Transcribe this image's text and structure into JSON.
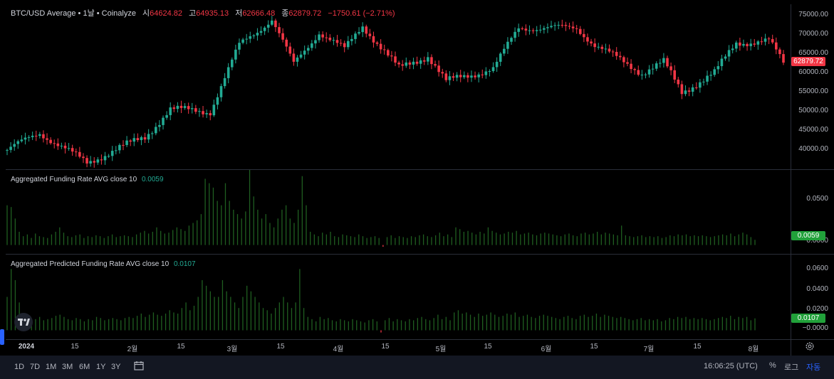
{
  "main_legend": {
    "title": "BTC/USD Average • 1날 • Coinalyze",
    "open_label": "시",
    "open": "64624.82",
    "high_label": "고",
    "high": "64935.13",
    "low_label": "저",
    "low": "62666.48",
    "close_label": "종",
    "close": "62879.72",
    "change": "−1750.61 (−2.71%)"
  },
  "price_axis": {
    "ticks": [
      "75000.00",
      "70000.00",
      "65000.00",
      "60000.00",
      "55000.00",
      "50000.00",
      "45000.00",
      "40000.00"
    ],
    "last_price_tag": "62879.72"
  },
  "funding_pane": {
    "title": "Aggregated Funding Rate AVG close 10",
    "value": "0.0059",
    "ticks": [
      "0.0500",
      "0.0000"
    ],
    "tag": "0.0059"
  },
  "predicted_pane": {
    "title": "Aggregated Predicted Funding Rate AVG close 10",
    "value": "0.0107",
    "ticks": [
      "0.0600",
      "0.0400",
      "0.0200",
      "−0.0000"
    ],
    "tag": "0.0107"
  },
  "time_axis": {
    "labels": [
      "2024",
      "15",
      "2월",
      "15",
      "3월",
      "15",
      "4월",
      "15",
      "5월",
      "15",
      "6월",
      "15",
      "7월",
      "15",
      "8월"
    ]
  },
  "bottom_bar": {
    "ranges": [
      "1D",
      "7D",
      "1M",
      "3M",
      "6M",
      "1Y",
      "3Y"
    ],
    "clock": "16:06:25 (UTC)",
    "percent": "%",
    "log": "로그",
    "auto": "자동"
  },
  "colors": {
    "up": "#22ab94",
    "down": "#f23645",
    "bar": "#1f5e20",
    "grid": "#2a2e39"
  },
  "icons": {
    "settings": "gear-icon",
    "date_range": "calendar-icon",
    "brand": "tradingview-logo-icon"
  },
  "chart_data": [
    {
      "type": "candlestick",
      "title": "BTC/USD Average • 1날 • Coinalyze",
      "ylim": [
        38000,
        76500
      ],
      "y_ticks": [
        75000,
        70000,
        65000,
        60000,
        55000,
        50000,
        45000,
        40000
      ],
      "x_range": [
        "2024-01-01",
        "2024-08-05"
      ],
      "key_points": [
        {
          "x": "2024-01-01",
          "y": 42500
        },
        {
          "x": "2024-01-10",
          "y": 46500
        },
        {
          "x": "2024-01-23",
          "y": 39500
        },
        {
          "x": "2024-02-01",
          "y": 43000
        },
        {
          "x": "2024-02-08",
          "y": 45500
        },
        {
          "x": "2024-02-15",
          "y": 52000
        },
        {
          "x": "2024-02-26",
          "y": 51500
        },
        {
          "x": "2024-03-05",
          "y": 67000
        },
        {
          "x": "2024-03-14",
          "y": 73000
        },
        {
          "x": "2024-03-20",
          "y": 62500
        },
        {
          "x": "2024-03-27",
          "y": 70000
        },
        {
          "x": "2024-04-03",
          "y": 66000
        },
        {
          "x": "2024-04-08",
          "y": 71500
        },
        {
          "x": "2024-04-18",
          "y": 61500
        },
        {
          "x": "2024-04-26",
          "y": 64500
        },
        {
          "x": "2024-05-01",
          "y": 58500
        },
        {
          "x": "2024-05-14",
          "y": 61500
        },
        {
          "x": "2024-05-21",
          "y": 71000
        },
        {
          "x": "2024-06-06",
          "y": 71000
        },
        {
          "x": "2024-06-11",
          "y": 67000
        },
        {
          "x": "2024-06-24",
          "y": 60500
        },
        {
          "x": "2024-06-30",
          "y": 63000
        },
        {
          "x": "2024-07-05",
          "y": 56000
        },
        {
          "x": "2024-07-14",
          "y": 60500
        },
        {
          "x": "2024-07-20",
          "y": 67500
        },
        {
          "x": "2024-07-29",
          "y": 68000
        },
        {
          "x": "2024-08-02",
          "y": 62879.72
        }
      ]
    },
    {
      "type": "bar",
      "title": "Aggregated Funding Rate AVG close 10",
      "ylim": [
        -0.01,
        0.085
      ],
      "last_value": 0.0059,
      "values": [
        0.045,
        0.043,
        0.03,
        0.015,
        0.01,
        0.012,
        0.008,
        0.013,
        0.01,
        0.009,
        0.008,
        0.012,
        0.015,
        0.02,
        0.014,
        0.01,
        0.009,
        0.011,
        0.012,
        0.008,
        0.01,
        0.009,
        0.011,
        0.01,
        0.008,
        0.01,
        0.012,
        0.009,
        0.01,
        0.011,
        0.01,
        0.009,
        0.012,
        0.014,
        0.016,
        0.013,
        0.015,
        0.02,
        0.016,
        0.013,
        0.014,
        0.017,
        0.02,
        0.018,
        0.016,
        0.022,
        0.025,
        0.028,
        0.035,
        0.075,
        0.07,
        0.065,
        0.05,
        0.045,
        0.07,
        0.05,
        0.04,
        0.035,
        0.03,
        0.038,
        0.085,
        0.055,
        0.04,
        0.03,
        0.035,
        0.025,
        0.02,
        0.03,
        0.04,
        0.045,
        0.03,
        0.025,
        0.04,
        0.078,
        0.045,
        0.015,
        0.012,
        0.01,
        0.014,
        0.012,
        0.015,
        0.01,
        0.009,
        0.012,
        0.011,
        0.01,
        0.009,
        0.012,
        0.01,
        0.008,
        0.009,
        0.01,
        0.008,
        -0.002,
        0.009,
        0.011,
        0.008,
        0.01,
        0.009,
        0.008,
        0.01,
        0.009,
        0.011,
        0.012,
        0.01,
        0.009,
        0.011,
        0.014,
        0.01,
        0.012,
        0.009,
        0.02,
        0.018,
        0.015,
        0.016,
        0.014,
        0.012,
        0.015,
        0.013,
        0.02,
        0.016,
        0.014,
        0.012,
        0.013,
        0.015,
        0.014,
        0.016,
        0.012,
        0.013,
        0.014,
        0.012,
        0.011,
        0.013,
        0.014,
        0.013,
        0.012,
        0.011,
        0.01,
        0.012,
        0.013,
        0.011,
        0.01,
        0.013,
        0.014,
        0.012,
        0.013,
        0.015,
        0.012,
        0.014,
        0.013,
        0.012,
        0.011,
        0.022,
        0.011,
        0.01,
        0.009,
        0.01,
        0.011,
        0.009,
        0.01,
        0.009,
        0.01,
        0.008,
        0.009,
        0.011,
        0.01,
        0.012,
        0.011,
        0.012,
        0.01,
        0.011,
        0.01,
        0.011,
        0.01,
        0.009,
        0.01,
        0.011,
        0.012,
        0.011,
        0.013,
        0.01,
        0.012,
        0.014,
        0.012,
        0.009,
        0.0059
      ]
    },
    {
      "type": "bar",
      "title": "Aggregated Predicted Funding Rate AVG close 10",
      "ylim": [
        -0.008,
        0.068
      ],
      "last_value": 0.0107,
      "values": [
        0.03,
        0.055,
        0.045,
        0.025,
        0.015,
        0.012,
        0.008,
        0.01,
        0.012,
        0.009,
        0.01,
        0.011,
        0.013,
        0.014,
        0.012,
        0.01,
        0.009,
        0.011,
        0.01,
        0.008,
        0.01,
        0.009,
        0.012,
        0.011,
        0.009,
        0.01,
        0.011,
        0.01,
        0.009,
        0.011,
        0.012,
        0.011,
        0.013,
        0.015,
        0.012,
        0.014,
        0.016,
        0.014,
        0.013,
        0.015,
        0.018,
        0.016,
        0.015,
        0.02,
        0.025,
        0.018,
        0.022,
        0.03,
        0.045,
        0.04,
        0.035,
        0.03,
        0.03,
        0.045,
        0.035,
        0.03,
        0.025,
        0.02,
        0.03,
        0.04,
        0.035,
        0.03,
        0.025,
        0.02,
        0.018,
        0.015,
        0.02,
        0.025,
        0.03,
        0.025,
        0.02,
        0.025,
        0.055,
        0.02,
        0.012,
        0.01,
        0.008,
        0.012,
        0.01,
        0.011,
        0.009,
        0.008,
        0.01,
        0.009,
        0.008,
        0.01,
        0.009,
        0.008,
        0.007,
        0.009,
        0.01,
        0.008,
        -0.002,
        0.009,
        0.011,
        0.008,
        0.01,
        0.009,
        0.008,
        0.01,
        0.009,
        0.011,
        0.012,
        0.01,
        0.009,
        0.011,
        0.014,
        0.01,
        0.012,
        0.009,
        0.016,
        0.018,
        0.015,
        0.016,
        0.014,
        0.012,
        0.015,
        0.013,
        0.014,
        0.016,
        0.014,
        0.012,
        0.013,
        0.015,
        0.014,
        0.016,
        0.012,
        0.013,
        0.014,
        0.012,
        0.011,
        0.013,
        0.014,
        0.013,
        0.012,
        0.011,
        0.01,
        0.012,
        0.013,
        0.011,
        0.01,
        0.013,
        0.014,
        0.012,
        0.013,
        0.015,
        0.012,
        0.014,
        0.013,
        0.012,
        0.011,
        0.012,
        0.011,
        0.01,
        0.009,
        0.01,
        0.011,
        0.009,
        0.01,
        0.009,
        0.01,
        0.008,
        0.009,
        0.011,
        0.01,
        0.012,
        0.011,
        0.012,
        0.01,
        0.011,
        0.01,
        0.011,
        0.01,
        0.009,
        0.01,
        0.011,
        0.012,
        0.011,
        0.013,
        0.01,
        0.012,
        0.011,
        0.012,
        0.009,
        0.0107
      ]
    }
  ]
}
